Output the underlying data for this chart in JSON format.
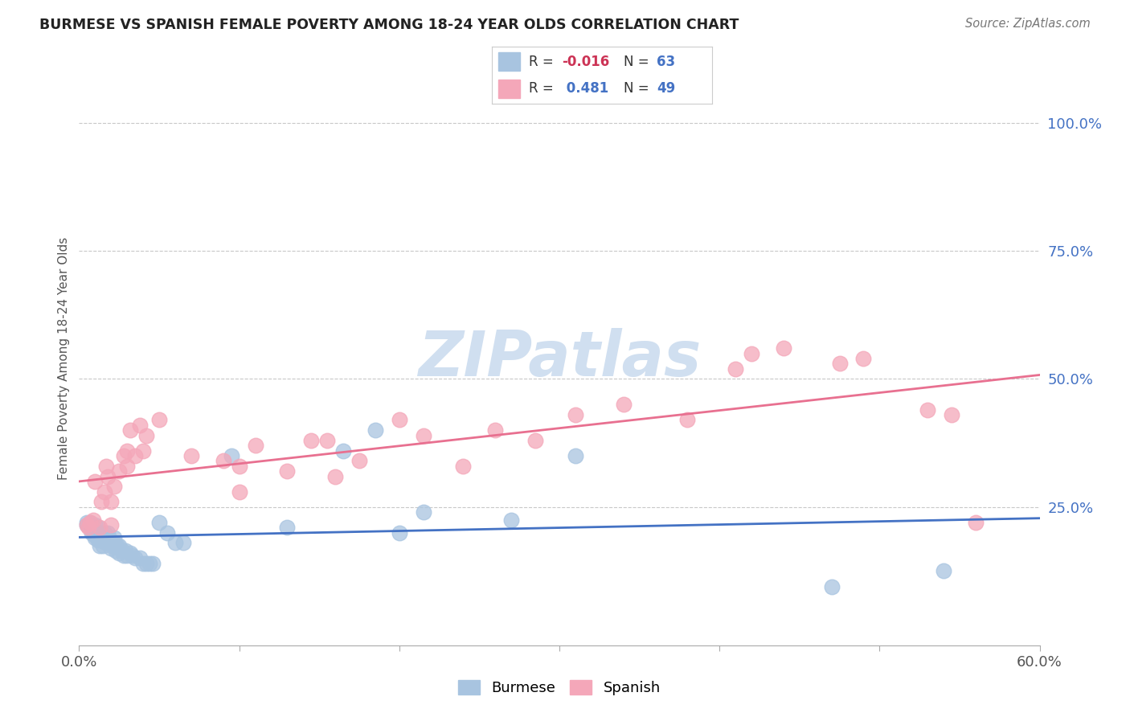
{
  "title": "BURMESE VS SPANISH FEMALE POVERTY AMONG 18-24 YEAR OLDS CORRELATION CHART",
  "source": "Source: ZipAtlas.com",
  "ylabel": "Female Poverty Among 18-24 Year Olds",
  "xlim": [
    0.0,
    0.6
  ],
  "ylim": [
    -0.02,
    1.1
  ],
  "yticks_right": [
    0.25,
    0.5,
    0.75,
    1.0
  ],
  "yticklabels_right": [
    "25.0%",
    "50.0%",
    "75.0%",
    "100.0%"
  ],
  "burmese_color": "#a8c4e0",
  "spanish_color": "#f4a7b9",
  "burmese_line_color": "#4472c4",
  "spanish_line_color": "#e87090",
  "burmese_R": -0.016,
  "burmese_N": 63,
  "spanish_R": 0.481,
  "spanish_N": 49,
  "watermark": "ZIPatlas",
  "watermark_color": "#d0dff0",
  "background_color": "#ffffff",
  "burmese_x": [
    0.005,
    0.005,
    0.007,
    0.007,
    0.008,
    0.008,
    0.009,
    0.009,
    0.01,
    0.01,
    0.01,
    0.01,
    0.01,
    0.012,
    0.012,
    0.012,
    0.012,
    0.013,
    0.013,
    0.014,
    0.014,
    0.015,
    0.015,
    0.016,
    0.017,
    0.018,
    0.018,
    0.02,
    0.02,
    0.021,
    0.022,
    0.022,
    0.023,
    0.023,
    0.024,
    0.025,
    0.025,
    0.027,
    0.028,
    0.029,
    0.03,
    0.032,
    0.033,
    0.035,
    0.038,
    0.04,
    0.042,
    0.044,
    0.046,
    0.05,
    0.055,
    0.06,
    0.065,
    0.095,
    0.13,
    0.165,
    0.185,
    0.2,
    0.215,
    0.27,
    0.31,
    0.47,
    0.54
  ],
  "burmese_y": [
    0.215,
    0.22,
    0.215,
    0.22,
    0.2,
    0.21,
    0.2,
    0.21,
    0.19,
    0.195,
    0.2,
    0.205,
    0.215,
    0.185,
    0.195,
    0.2,
    0.21,
    0.175,
    0.19,
    0.185,
    0.195,
    0.175,
    0.185,
    0.2,
    0.18,
    0.19,
    0.2,
    0.17,
    0.185,
    0.175,
    0.18,
    0.19,
    0.165,
    0.175,
    0.175,
    0.16,
    0.175,
    0.165,
    0.155,
    0.165,
    0.155,
    0.16,
    0.155,
    0.15,
    0.15,
    0.14,
    0.14,
    0.14,
    0.14,
    0.22,
    0.2,
    0.18,
    0.18,
    0.35,
    0.21,
    0.36,
    0.4,
    0.2,
    0.24,
    0.225,
    0.35,
    0.095,
    0.125
  ],
  "spanish_x": [
    0.005,
    0.006,
    0.007,
    0.009,
    0.01,
    0.013,
    0.014,
    0.016,
    0.017,
    0.018,
    0.02,
    0.02,
    0.022,
    0.025,
    0.028,
    0.03,
    0.03,
    0.032,
    0.035,
    0.038,
    0.04,
    0.042,
    0.05,
    0.07,
    0.09,
    0.1,
    0.1,
    0.11,
    0.13,
    0.145,
    0.155,
    0.16,
    0.175,
    0.2,
    0.215,
    0.24,
    0.26,
    0.285,
    0.31,
    0.34,
    0.38,
    0.41,
    0.42,
    0.44,
    0.475,
    0.49,
    0.53,
    0.545,
    0.56
  ],
  "spanish_y": [
    0.215,
    0.21,
    0.22,
    0.225,
    0.3,
    0.21,
    0.26,
    0.28,
    0.33,
    0.31,
    0.215,
    0.26,
    0.29,
    0.32,
    0.35,
    0.33,
    0.36,
    0.4,
    0.35,
    0.41,
    0.36,
    0.39,
    0.42,
    0.35,
    0.34,
    0.28,
    0.33,
    0.37,
    0.32,
    0.38,
    0.38,
    0.31,
    0.34,
    0.42,
    0.39,
    0.33,
    0.4,
    0.38,
    0.43,
    0.45,
    0.42,
    0.52,
    0.55,
    0.56,
    0.53,
    0.54,
    0.44,
    0.43,
    0.22
  ]
}
